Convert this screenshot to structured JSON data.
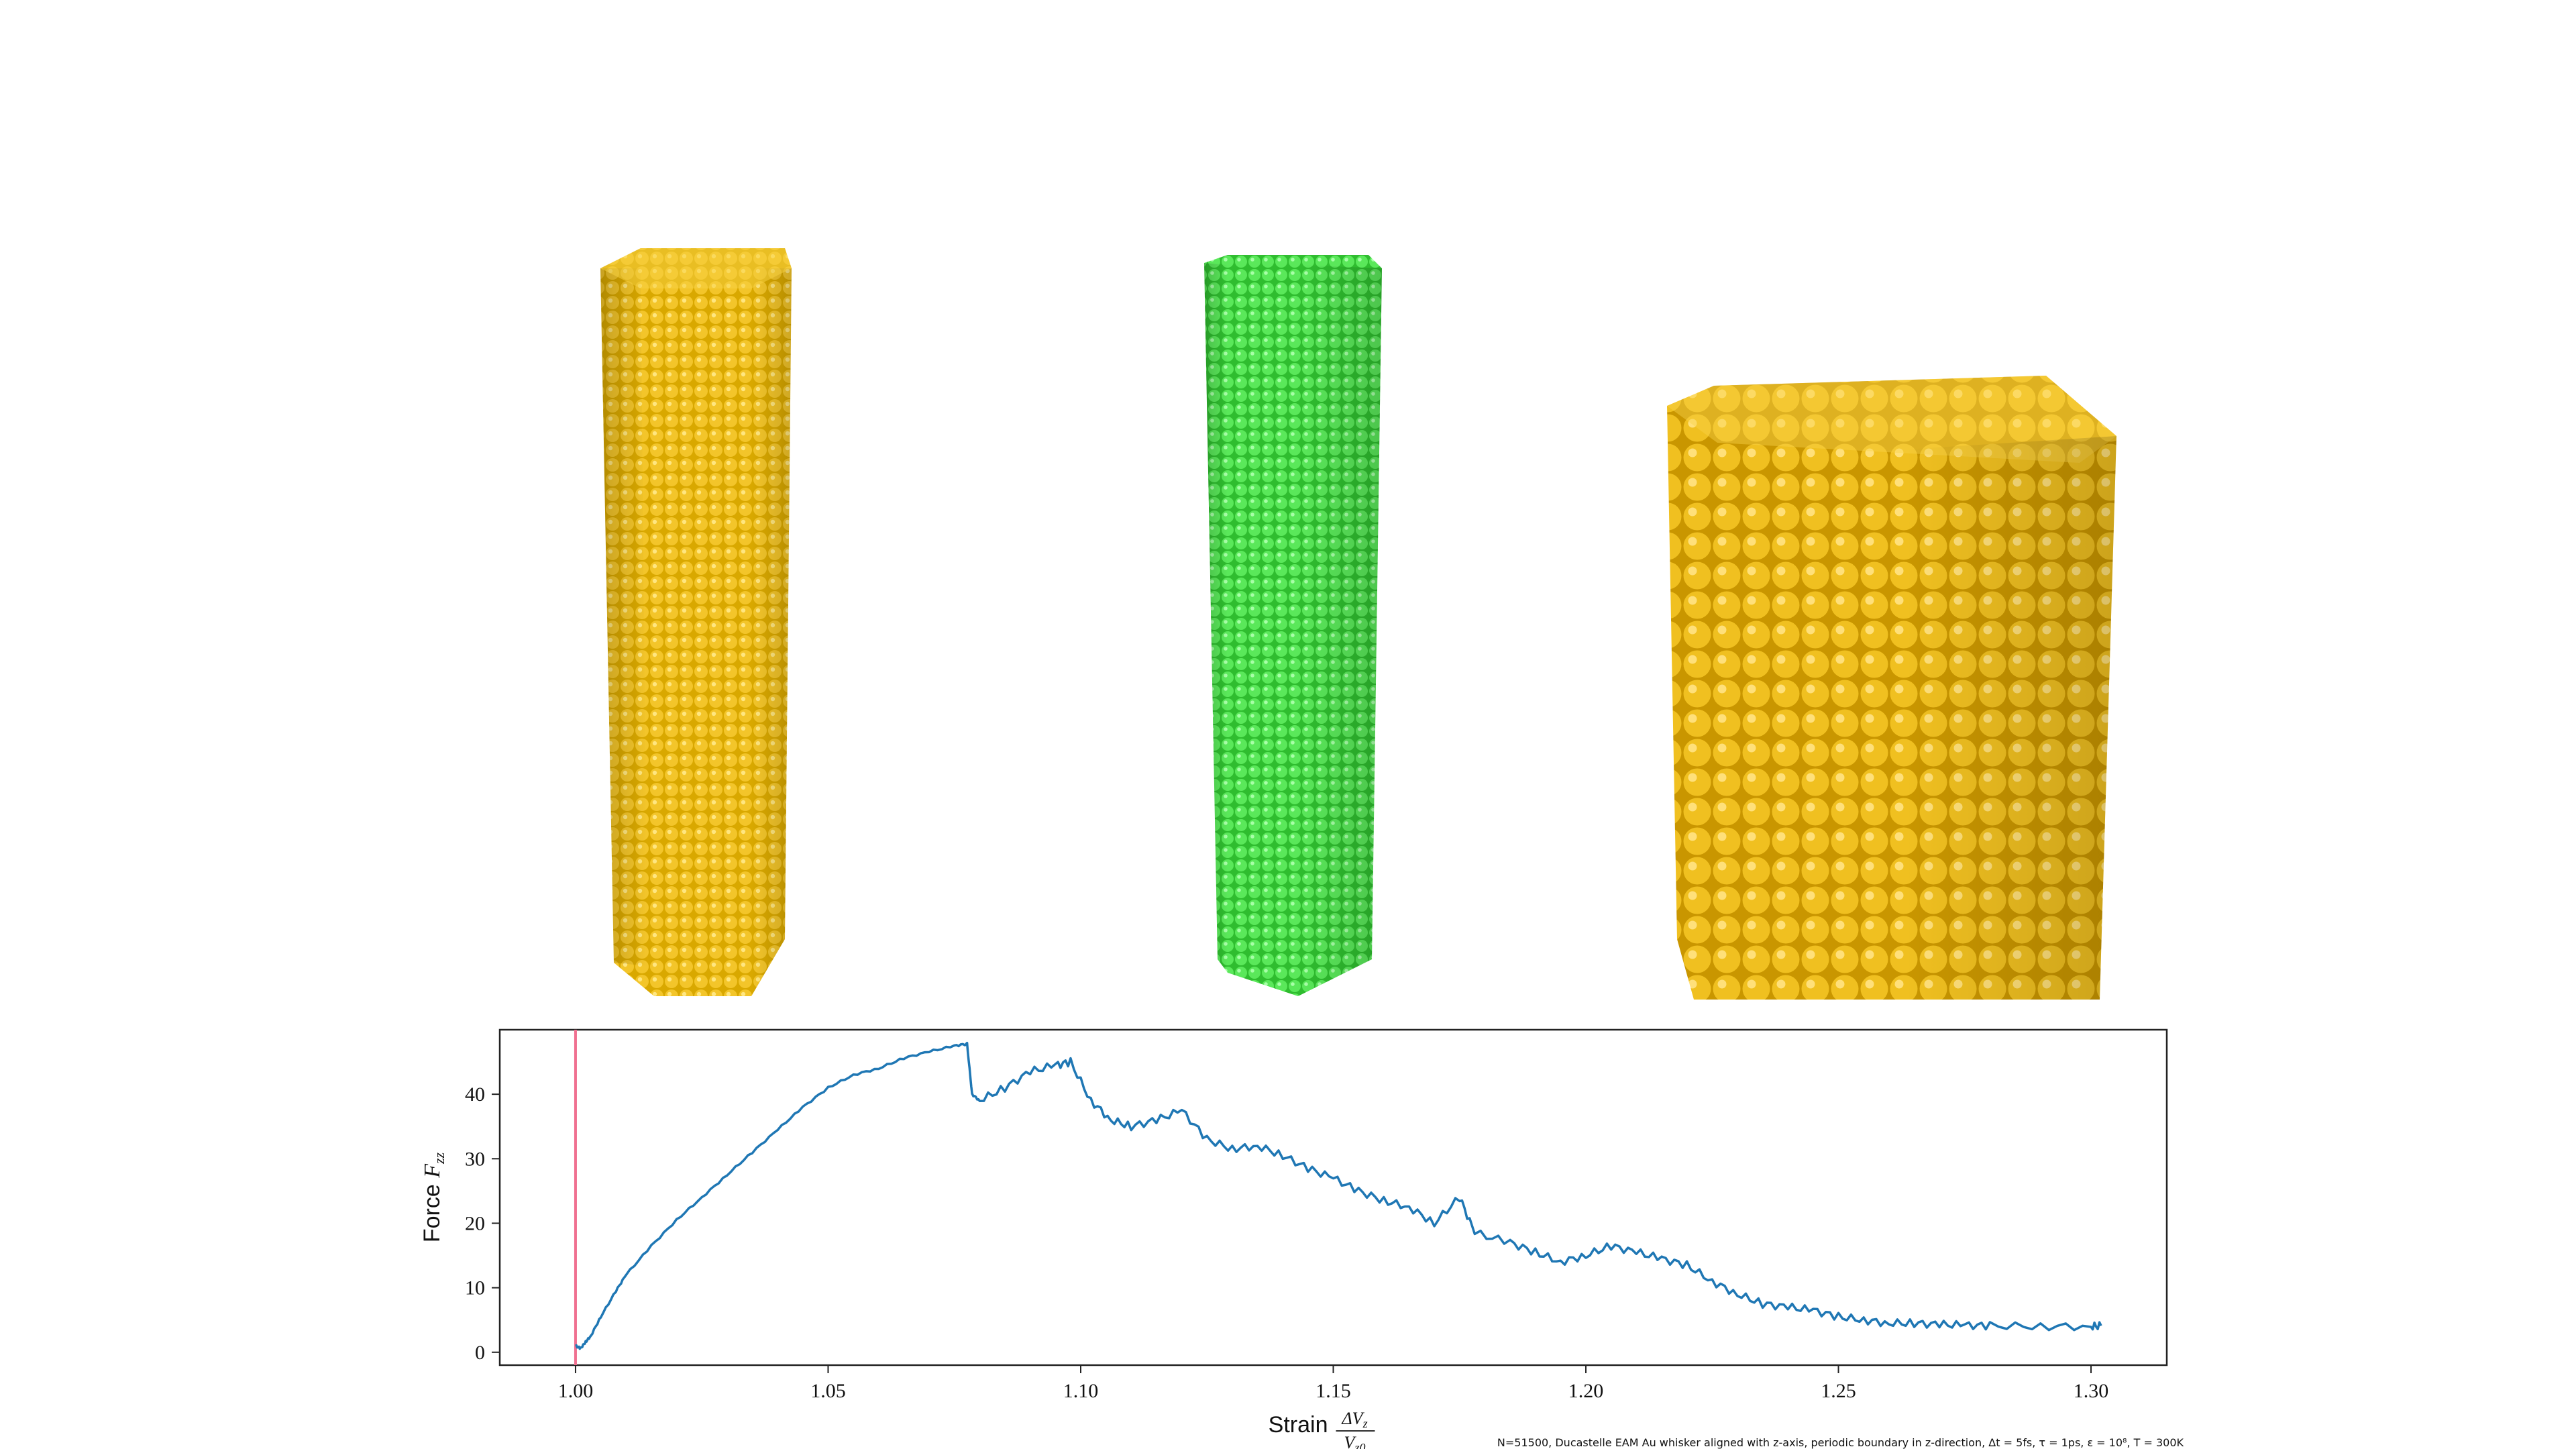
{
  "footer": {
    "caption": "N=51500, Ducastelle EAM Au whisker aligned with z-axis, periodic boundary in z-direction, Δt = 5fs, τ = 1ps, ε = 10⁸, T = 300K"
  },
  "colors": {
    "gold": "#f0c020",
    "gold_dark": "#b88a00",
    "green": "#55e655",
    "green_dark": "#22a822",
    "line": "#1f77b4",
    "marker": "#f07090"
  },
  "chart_data": {
    "type": "line",
    "xlabel": "Strain",
    "xlabel_math": "ΔVz / Vz0",
    "ylabel": "Force Fzz",
    "xlim": [
      0.985,
      1.315
    ],
    "ylim": [
      -2,
      50
    ],
    "xticks": [
      "1.00",
      "1.05",
      "1.10",
      "1.15",
      "1.20",
      "1.25",
      "1.30"
    ],
    "yticks": [
      "0",
      "10",
      "20",
      "30",
      "40"
    ],
    "grid": false,
    "vline_x": 1.0,
    "series": [
      {
        "points": [
          [
            1.0,
            1.0
          ],
          [
            1.001,
            0.6
          ],
          [
            1.002,
            1.6
          ],
          [
            1.003,
            2.5
          ],
          [
            1.005,
            5.5
          ],
          [
            1.008,
            9.5
          ],
          [
            1.01,
            12.0
          ],
          [
            1.015,
            16.5
          ],
          [
            1.02,
            20.5
          ],
          [
            1.025,
            24.0
          ],
          [
            1.03,
            27.5
          ],
          [
            1.035,
            31.0
          ],
          [
            1.04,
            34.5
          ],
          [
            1.045,
            38.0
          ],
          [
            1.05,
            41.0
          ],
          [
            1.055,
            43.0
          ],
          [
            1.06,
            44.0
          ],
          [
            1.065,
            45.6
          ],
          [
            1.07,
            46.6
          ],
          [
            1.075,
            47.5
          ],
          [
            1.0775,
            47.8
          ],
          [
            1.0785,
            40.0
          ],
          [
            1.08,
            39.0
          ],
          [
            1.085,
            41.0
          ],
          [
            1.09,
            43.5
          ],
          [
            1.095,
            44.5
          ],
          [
            1.098,
            45.0
          ],
          [
            1.102,
            39.0
          ],
          [
            1.106,
            36.0
          ],
          [
            1.11,
            35.0
          ],
          [
            1.115,
            36.0
          ],
          [
            1.12,
            37.5
          ],
          [
            1.125,
            33.0
          ],
          [
            1.13,
            31.5
          ],
          [
            1.135,
            32.0
          ],
          [
            1.14,
            30.5
          ],
          [
            1.145,
            28.5
          ],
          [
            1.15,
            27.0
          ],
          [
            1.155,
            25.0
          ],
          [
            1.16,
            23.5
          ],
          [
            1.165,
            22.5
          ],
          [
            1.17,
            20.0
          ],
          [
            1.175,
            24.0
          ],
          [
            1.178,
            18.5
          ],
          [
            1.185,
            17.0
          ],
          [
            1.19,
            15.5
          ],
          [
            1.195,
            14.0
          ],
          [
            1.2,
            15.0
          ],
          [
            1.205,
            16.5
          ],
          [
            1.21,
            15.5
          ],
          [
            1.215,
            14.5
          ],
          [
            1.22,
            13.5
          ],
          [
            1.225,
            11.0
          ],
          [
            1.23,
            9.0
          ],
          [
            1.235,
            7.5
          ],
          [
            1.24,
            7.0
          ],
          [
            1.245,
            6.5
          ],
          [
            1.25,
            5.5
          ],
          [
            1.255,
            5.0
          ],
          [
            1.26,
            4.5
          ],
          [
            1.265,
            4.5
          ],
          [
            1.27,
            4.3
          ],
          [
            1.275,
            4.2
          ],
          [
            1.28,
            4.1
          ],
          [
            1.29,
            4.0
          ],
          [
            1.3,
            4.0
          ],
          [
            1.302,
            4.1
          ]
        ]
      }
    ]
  }
}
